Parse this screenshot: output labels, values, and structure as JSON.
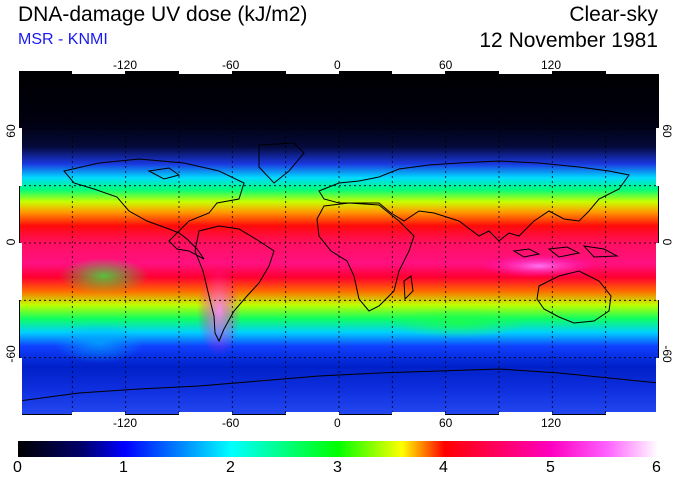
{
  "header": {
    "title": "DNA-damage UV dose (kJ/m2)",
    "source": "MSR - KNMI",
    "condition": "Clear-sky",
    "date": "12 November 1981"
  },
  "map": {
    "projection": "equirectangular",
    "lon_range": [
      -180,
      180
    ],
    "lat_range": [
      -90,
      90
    ],
    "lon_ticks": [
      "-120",
      "-60",
      "0",
      "60",
      "120"
    ],
    "lat_ticks": [
      "60",
      "0",
      "-60"
    ],
    "gridlines": "dotted every 30 degrees"
  },
  "colorbar": {
    "ticks": [
      "0",
      "1",
      "2",
      "3",
      "4",
      "5",
      "6"
    ],
    "range": [
      0,
      6
    ],
    "palette": [
      "#000000",
      "#0000ff",
      "#00ffff",
      "#00ff00",
      "#ffff00",
      "#ff0000",
      "#ff00ff",
      "#ffffff"
    ]
  }
}
